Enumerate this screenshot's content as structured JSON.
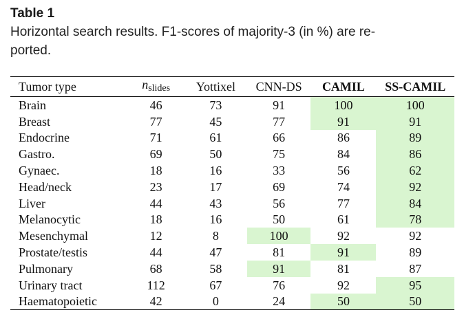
{
  "caption": {
    "label": "Table 1",
    "text_line1": "Horizontal search results. F1-scores of majority-3 (in %) are re-",
    "text_line2": "ported."
  },
  "table": {
    "headers": {
      "tumor_type": "Tumor type",
      "n_symbol": "n",
      "n_subscript": "slides",
      "yottixel": "Yottixel",
      "cnn_ds": "CNN-DS",
      "camil": "CAMIL",
      "ss_camil": "SS-CAMIL"
    },
    "highlight_color": "#d9f5d0",
    "rows": [
      {
        "tumor": "Brain",
        "n": "46",
        "yottixel": "73",
        "cnn_ds": "91",
        "camil": "100",
        "ss_camil": "100",
        "highlight": [
          "camil",
          "ss_camil"
        ]
      },
      {
        "tumor": "Breast",
        "n": "77",
        "yottixel": "45",
        "cnn_ds": "77",
        "camil": "91",
        "ss_camil": "91",
        "highlight": [
          "camil",
          "ss_camil"
        ]
      },
      {
        "tumor": "Endocrine",
        "n": "71",
        "yottixel": "61",
        "cnn_ds": "66",
        "camil": "86",
        "ss_camil": "89",
        "highlight": [
          "ss_camil"
        ]
      },
      {
        "tumor": "Gastro.",
        "n": "69",
        "yottixel": "50",
        "cnn_ds": "75",
        "camil": "84",
        "ss_camil": "86",
        "highlight": [
          "ss_camil"
        ]
      },
      {
        "tumor": "Gynaec.",
        "n": "18",
        "yottixel": "16",
        "cnn_ds": "33",
        "camil": "56",
        "ss_camil": "62",
        "highlight": [
          "ss_camil"
        ]
      },
      {
        "tumor": "Head/neck",
        "n": "23",
        "yottixel": "17",
        "cnn_ds": "69",
        "camil": "74",
        "ss_camil": "92",
        "highlight": [
          "ss_camil"
        ]
      },
      {
        "tumor": "Liver",
        "n": "44",
        "yottixel": "43",
        "cnn_ds": "56",
        "camil": "77",
        "ss_camil": "84",
        "highlight": [
          "ss_camil"
        ]
      },
      {
        "tumor": "Melanocytic",
        "n": "18",
        "yottixel": "16",
        "cnn_ds": "50",
        "camil": "61",
        "ss_camil": "78",
        "highlight": [
          "ss_camil"
        ]
      },
      {
        "tumor": "Mesenchymal",
        "n": "12",
        "yottixel": "8",
        "cnn_ds": "100",
        "camil": "92",
        "ss_camil": "92",
        "highlight": [
          "cnn_ds"
        ]
      },
      {
        "tumor": "Prostate/testis",
        "n": "44",
        "yottixel": "47",
        "cnn_ds": "81",
        "camil": "91",
        "ss_camil": "89",
        "highlight": [
          "camil"
        ]
      },
      {
        "tumor": "Pulmonary",
        "n": "68",
        "yottixel": "58",
        "cnn_ds": "91",
        "camil": "81",
        "ss_camil": "87",
        "highlight": [
          "cnn_ds"
        ]
      },
      {
        "tumor": "Urinary tract",
        "n": "112",
        "yottixel": "67",
        "cnn_ds": "76",
        "camil": "92",
        "ss_camil": "95",
        "highlight": [
          "ss_camil"
        ]
      },
      {
        "tumor": "Haematopoietic",
        "n": "42",
        "yottixel": "0",
        "cnn_ds": "24",
        "camil": "50",
        "ss_camil": "50",
        "highlight": [
          "camil",
          "ss_camil"
        ]
      }
    ]
  }
}
